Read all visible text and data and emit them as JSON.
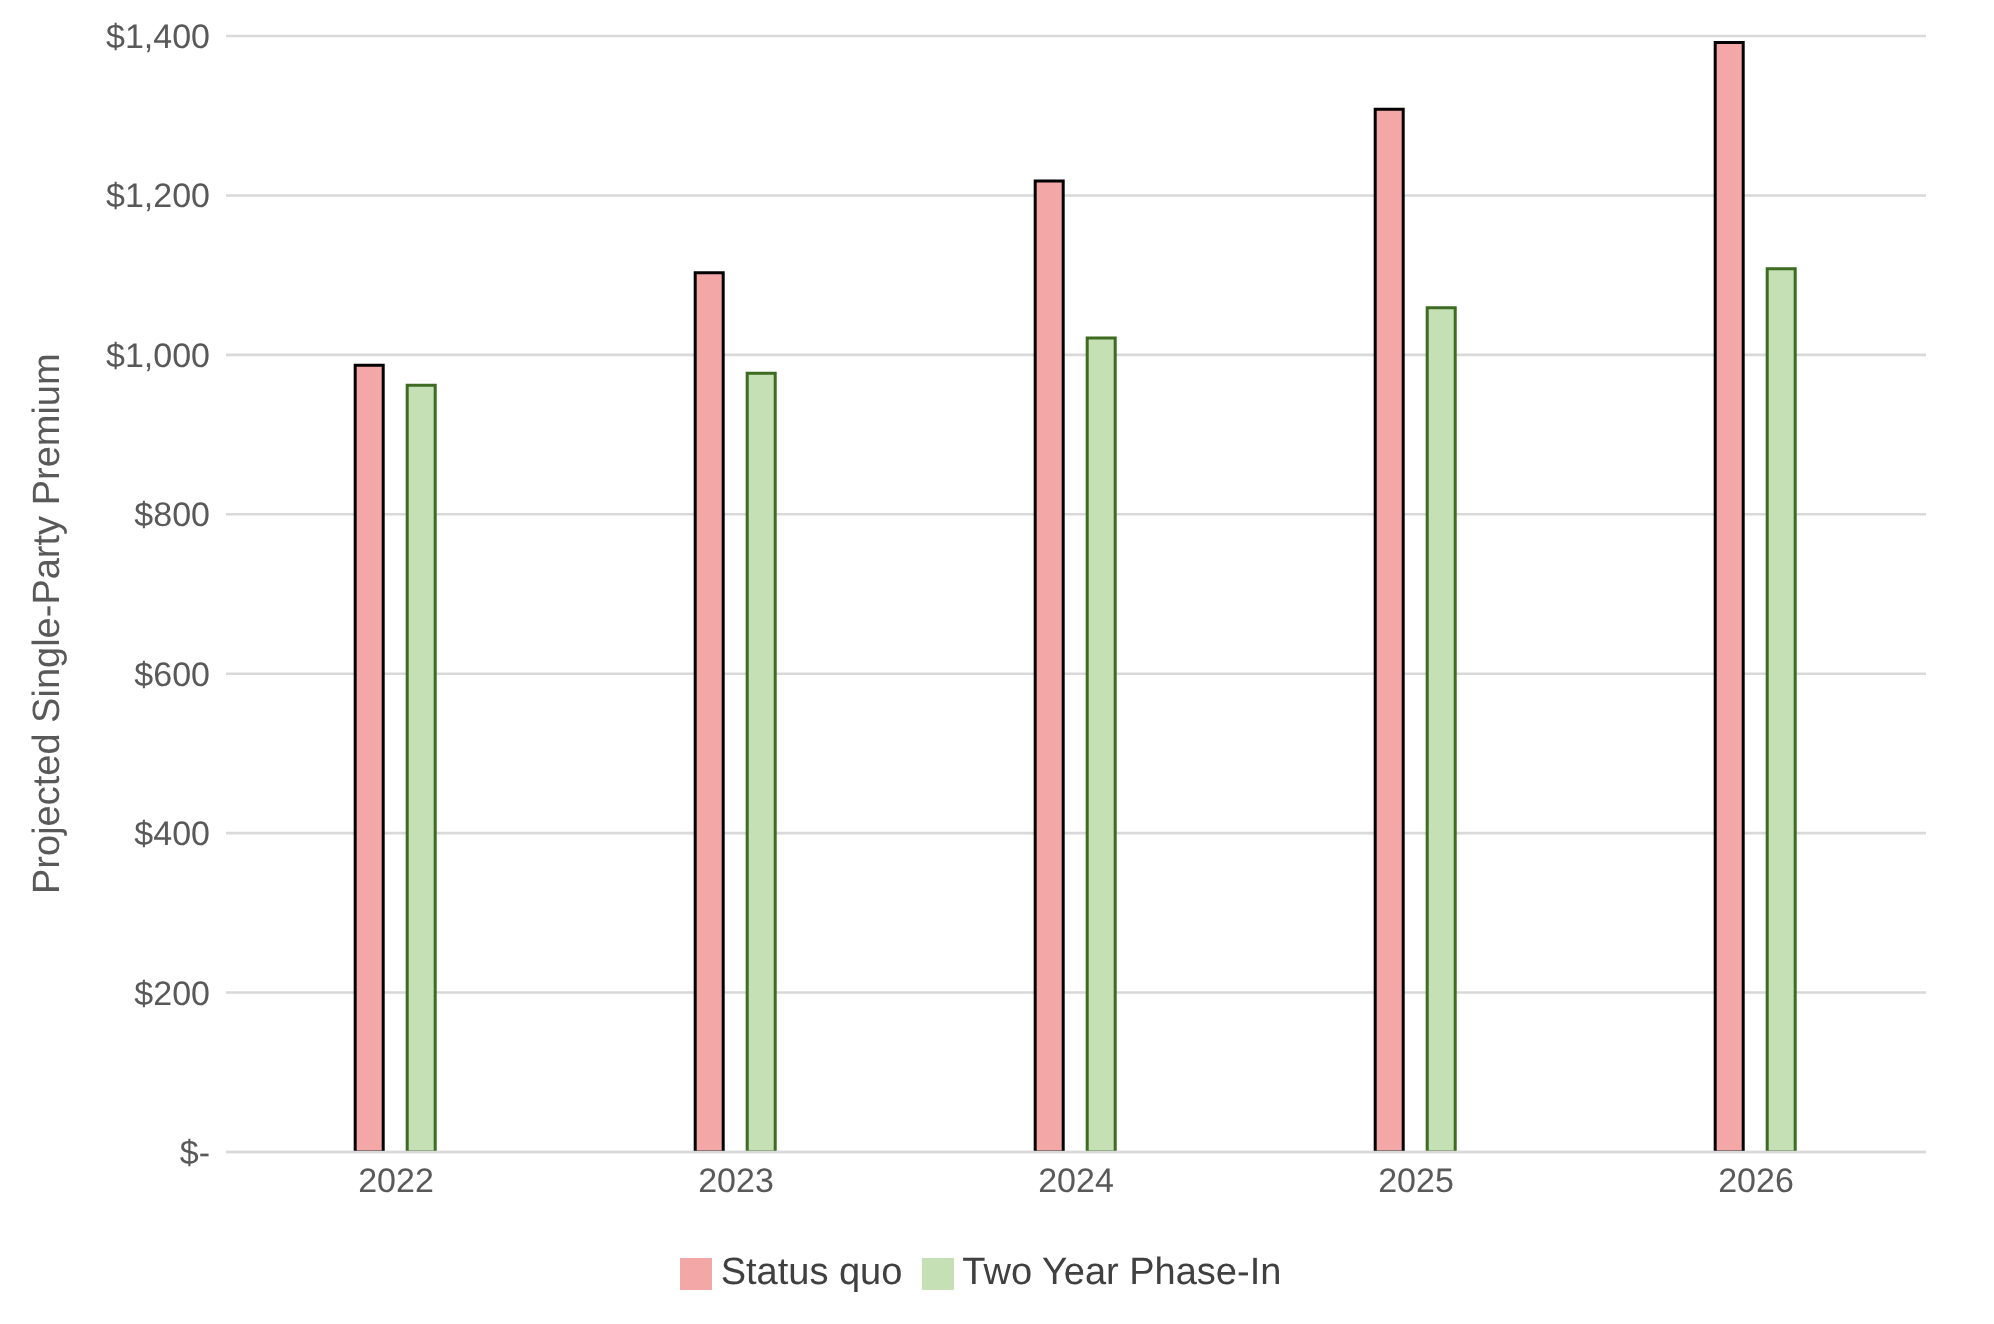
{
  "chart_data": {
    "type": "bar",
    "ylabel": "Projected Single-Party Premium",
    "categories": [
      "2022",
      "2023",
      "2024",
      "2025",
      "2026"
    ],
    "series": [
      {
        "name": "Status quo",
        "color": "#f4a7a7",
        "values": [
          987,
          1103,
          1218,
          1308,
          1392
        ]
      },
      {
        "name": "Two Year Phase-In",
        "color": "#c5e0b4",
        "values": [
          962,
          977,
          1021,
          1059,
          1108
        ]
      }
    ],
    "ylim": [
      0,
      1400
    ],
    "yticks": [
      {
        "value": 0,
        "label": "$-"
      },
      {
        "value": 200,
        "label": "$200"
      },
      {
        "value": 400,
        "label": "$400"
      },
      {
        "value": 600,
        "label": "$600"
      },
      {
        "value": 800,
        "label": "$800"
      },
      {
        "value": 1000,
        "label": "$1,000"
      },
      {
        "value": 1200,
        "label": "$1,200"
      },
      {
        "value": 1400,
        "label": "$1,400"
      }
    ],
    "grid": "y",
    "legend": "bottom"
  }
}
